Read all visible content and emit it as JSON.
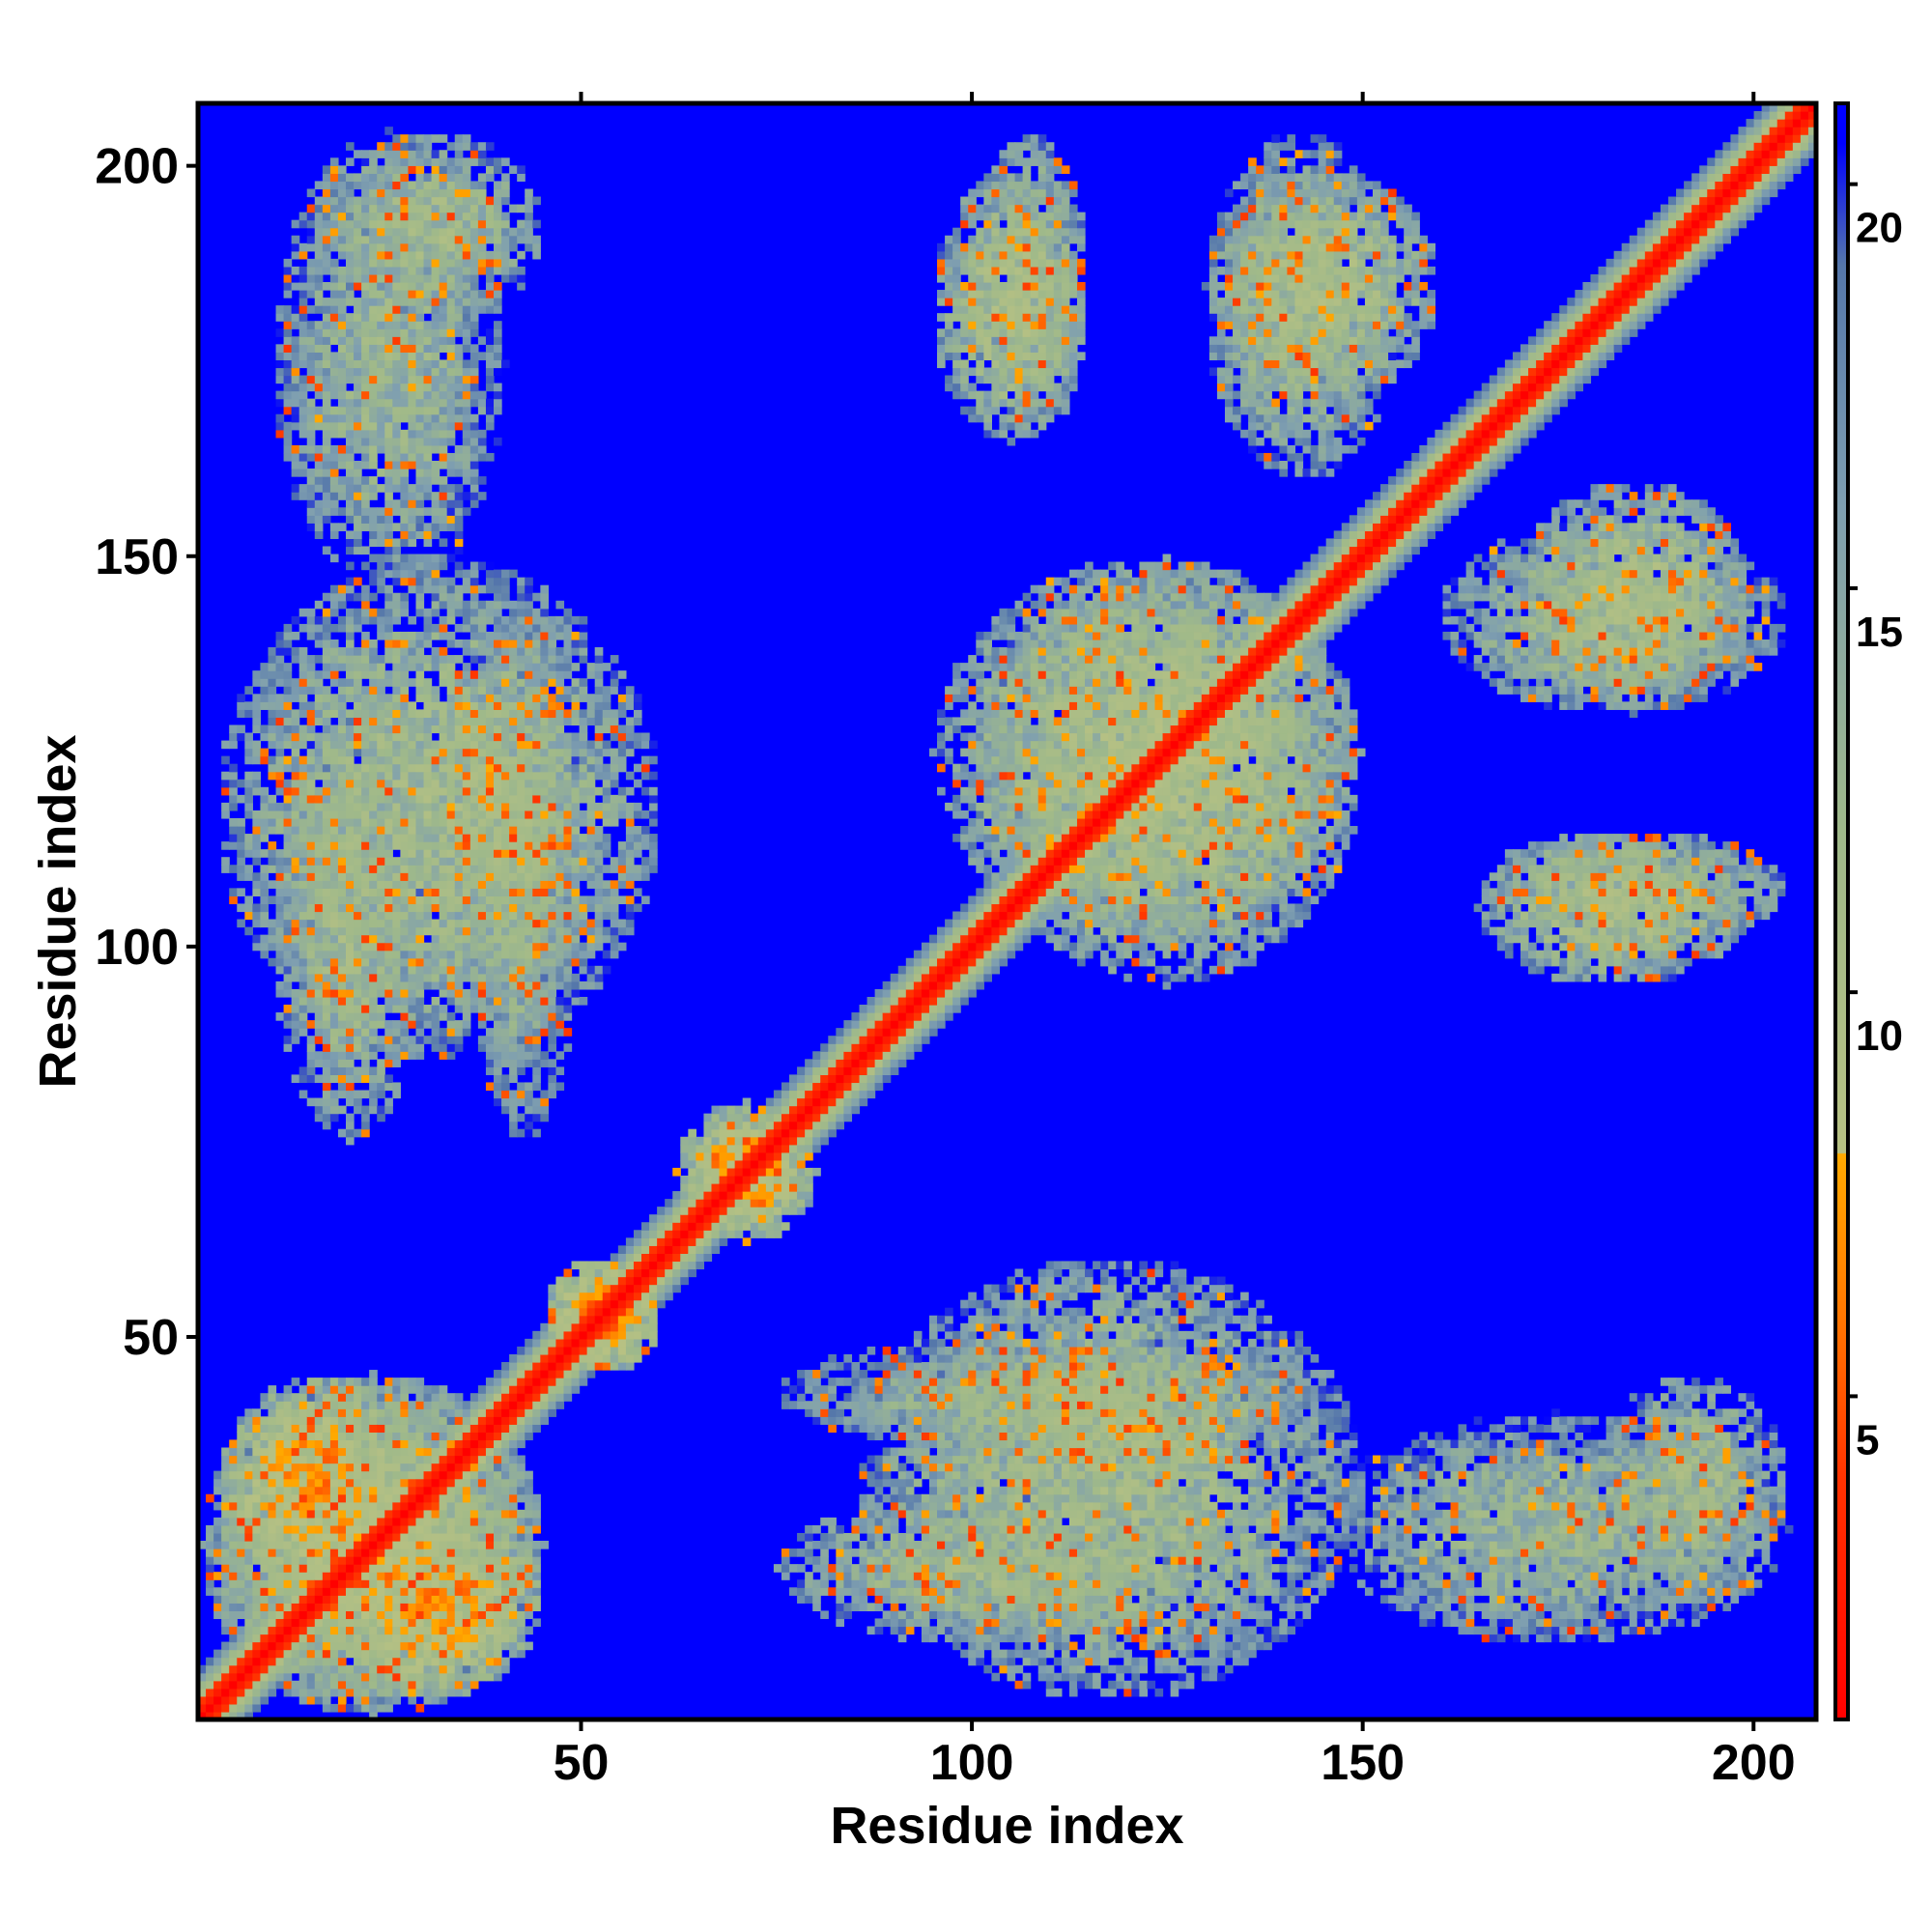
{
  "chart_data": {
    "type": "heatmap",
    "title": "",
    "xlabel": "Residue index",
    "ylabel": "Residue index",
    "xlim": [
      1,
      208
    ],
    "ylim": [
      1,
      208
    ],
    "x_ticks": [
      50,
      100,
      150,
      200
    ],
    "y_ticks": [
      50,
      100,
      150,
      200
    ],
    "colorbar": {
      "ticks": [
        5,
        10,
        15,
        20
      ],
      "range": [
        1,
        21
      ],
      "stops": [
        {
          "value": 1,
          "color": "#ff0000"
        },
        {
          "value": 4,
          "color": "#ff3300"
        },
        {
          "value": 6,
          "color": "#ff7700"
        },
        {
          "value": 8,
          "color": "#ffaa00"
        },
        {
          "value": 8.01,
          "color": "#b7c183"
        },
        {
          "value": 12,
          "color": "#9fb98a"
        },
        {
          "value": 16,
          "color": "#7f9fb0"
        },
        {
          "value": 19,
          "color": "#5577aa"
        },
        {
          "value": 20.5,
          "color": "#0000ff"
        }
      ]
    },
    "background_color": "#0000ff",
    "diagonal_band": {
      "core": 2,
      "width": 6
    },
    "contact_regions": [
      {
        "x": [
          1,
          45
        ],
        "y": [
          1,
          45
        ],
        "level": 11
      },
      {
        "x": [
          3,
          30
        ],
        "y": [
          15,
          45
        ],
        "level": 9
      },
      {
        "x": [
          18,
          42
        ],
        "y": [
          3,
          25
        ],
        "level": 9
      },
      {
        "x": [
          45,
          60
        ],
        "y": [
          45,
          60
        ],
        "level": 8
      },
      {
        "x": [
          62,
          80
        ],
        "y": [
          62,
          80
        ],
        "level": 9
      },
      {
        "x": [
          90,
          140
        ],
        "y": [
          30,
          50
        ],
        "level": 12
      },
      {
        "x": [
          75,
          145
        ],
        "y": [
          35,
          50
        ],
        "level": 13
      },
      {
        "x": [
          75,
          130
        ],
        "y": [
          10,
          30
        ],
        "level": 12
      },
      {
        "x": [
          145,
          205
        ],
        "y": [
          10,
          40
        ],
        "level": 13
      },
      {
        "x": [
          3,
          60
        ],
        "y": [
          85,
          150
        ],
        "level": 12
      },
      {
        "x": [
          15,
          45
        ],
        "y": [
          180,
          205
        ],
        "level": 12
      },
      {
        "x": [
          95,
          115
        ],
        "y": [
          165,
          200
        ],
        "level": 11
      },
      {
        "x": [
          130,
          160
        ],
        "y": [
          170,
          200
        ],
        "level": 11
      },
      {
        "x": [
          100,
          150
        ],
        "y": [
          95,
          150
        ],
        "level": 11
      },
      {
        "x": [
          160,
          205
        ],
        "y": [
          130,
          155
        ],
        "level": 12
      },
      {
        "x": [
          165,
          205
        ],
        "y": [
          100,
          115
        ],
        "level": 12
      }
    ]
  }
}
